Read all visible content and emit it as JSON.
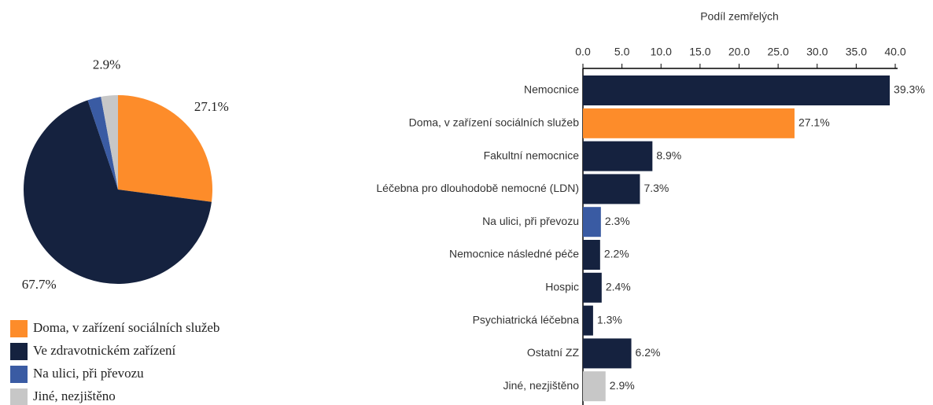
{
  "chart_data": [
    {
      "type": "pie",
      "categories": [
        "Doma, v zařízení sociálních služeb",
        "Ve zdravotnickém zařízení",
        "Na ulici, při převozu",
        "Jiné, nezjištěno"
      ],
      "values": [
        27.1,
        67.7,
        2.3,
        2.9
      ],
      "value_labels": [
        "27.1%",
        "67.7%",
        null,
        "2.9%"
      ],
      "colors": [
        "#fd8c2a",
        "#15223f",
        "#3a5ba3",
        "#c7c7c7"
      ]
    },
    {
      "type": "bar",
      "orientation": "horizontal",
      "x_label": "Podíl zemřelých",
      "categories": [
        "Nemocnice",
        "Doma, v zařízení sociálních služeb",
        "Fakultní nemocnice",
        "Léčebna pro dlouhodobě nemocné (LDN)",
        "Na ulici, při převozu",
        "Nemocnice následné péče",
        "Hospic",
        "Psychiatrická léčebna",
        "Ostatní ZZ",
        "Jiné, nezjištěno"
      ],
      "values": [
        39.3,
        27.1,
        8.9,
        7.3,
        2.3,
        2.2,
        2.4,
        1.3,
        6.2,
        2.9
      ],
      "value_labels": [
        "39.3%",
        "27.1%",
        "8.9%",
        "7.3%",
        "2.3%",
        "2.2%",
        "2.4%",
        "1.3%",
        "6.2%",
        "2.9%"
      ],
      "colors": [
        "#15223f",
        "#fd8c2a",
        "#15223f",
        "#15223f",
        "#3a5ba3",
        "#15223f",
        "#15223f",
        "#15223f",
        "#15223f",
        "#c7c7c7"
      ],
      "xlim": [
        0,
        40
      ],
      "xticks": [
        {
          "value": 0,
          "label": "0.0"
        },
        {
          "value": 5,
          "label": "5.0"
        },
        {
          "value": 10,
          "label": "10.0"
        },
        {
          "value": 15,
          "label": "15.0"
        },
        {
          "value": 20,
          "label": "20.0"
        },
        {
          "value": 25,
          "label": "25.0"
        },
        {
          "value": 30,
          "label": "30.0"
        },
        {
          "value": 35,
          "label": "35.0"
        },
        {
          "value": 40,
          "label": "40.0"
        }
      ]
    }
  ]
}
